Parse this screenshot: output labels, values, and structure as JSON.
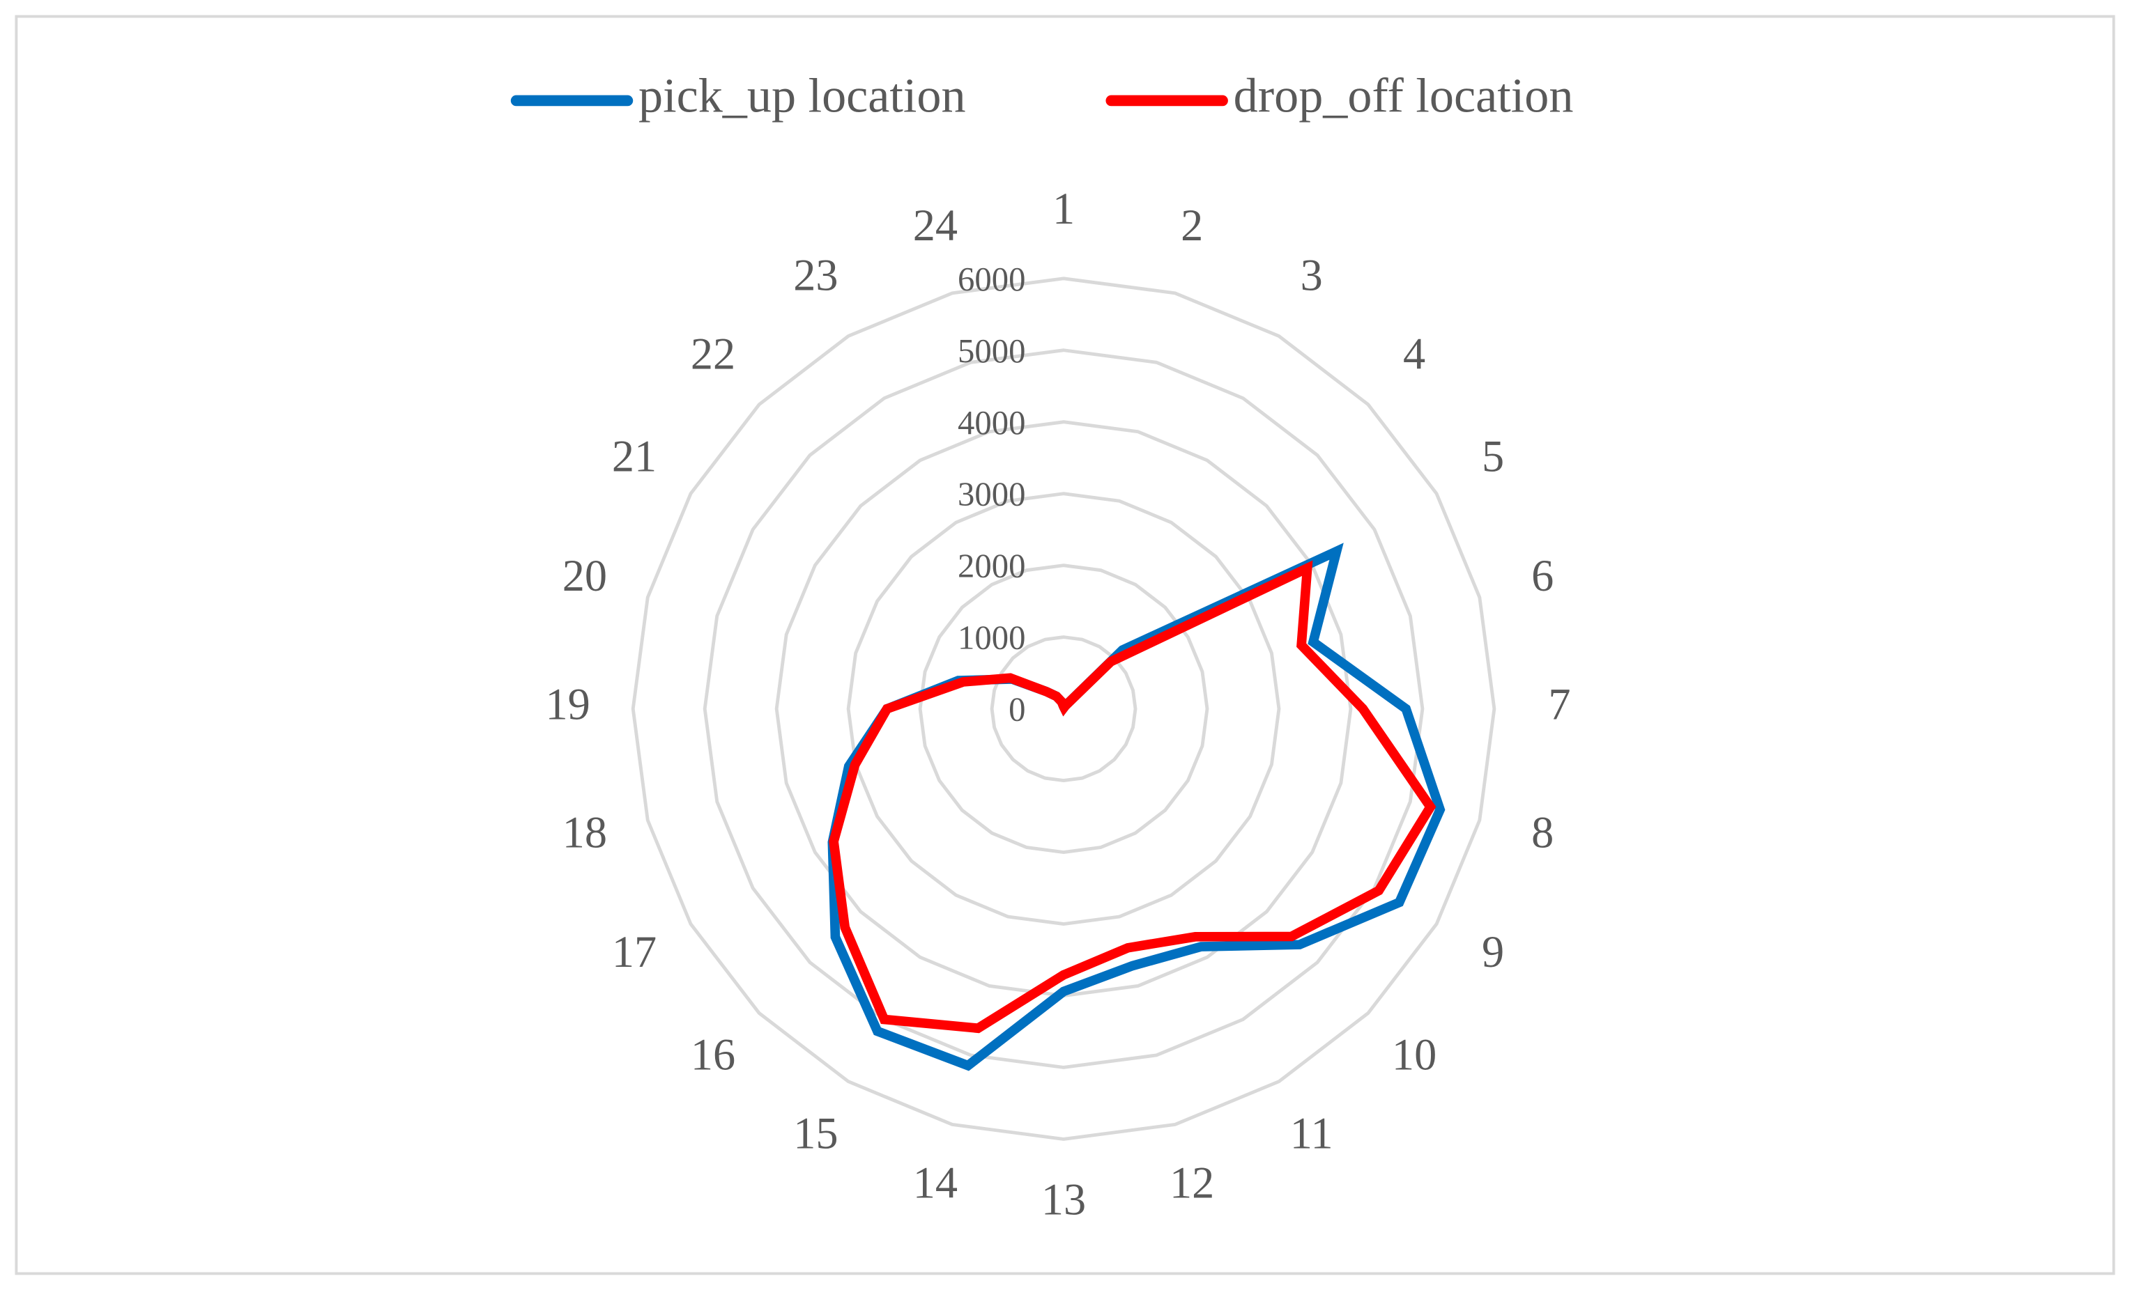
{
  "chart_data": {
    "type": "radar",
    "categories": [
      "1",
      "2",
      "3",
      "4",
      "5",
      "6",
      "7",
      "8",
      "9",
      "10",
      "11",
      "12",
      "13",
      "14",
      "15",
      "16",
      "17",
      "18",
      "19",
      "20",
      "21",
      "22",
      "23",
      "24"
    ],
    "series": [
      {
        "name": "pick_up location",
        "color": "#0070c0",
        "values": [
          30,
          20,
          50,
          1160,
          4390,
          3600,
          4770,
          5430,
          5400,
          4650,
          3830,
          3710,
          3940,
          5150,
          5190,
          4500,
          3720,
          3100,
          2460,
          1520,
          830,
          340,
          200,
          100
        ]
      },
      {
        "name": "drop_off location",
        "color": "#ff0000",
        "values": [
          30,
          20,
          50,
          930,
          3920,
          3430,
          4170,
          5290,
          5070,
          4490,
          3670,
          3450,
          3710,
          4610,
          5000,
          4310,
          3700,
          3010,
          2460,
          1450,
          860,
          340,
          200,
          100
        ]
      }
    ],
    "ylim": [
      0,
      6000
    ],
    "yticks": [
      0,
      1000,
      2000,
      3000,
      4000,
      5000,
      6000
    ],
    "grid": true,
    "legend": "top"
  }
}
